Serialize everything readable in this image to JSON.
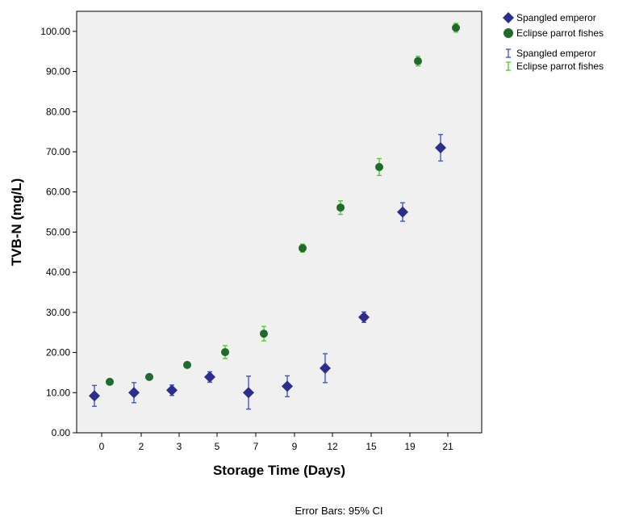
{
  "chart_data": {
    "type": "scatter",
    "xlabel": "Storage Time (Days)",
    "ylabel": "TVB-N (mg/L)",
    "categories": [
      "0",
      "2",
      "3",
      "5",
      "7",
      "9",
      "12",
      "15",
      "19",
      "21"
    ],
    "y_ticks": [
      "0.00",
      "10.00",
      "20.00",
      "30.00",
      "40.00",
      "50.00",
      "60.00",
      "70.00",
      "80.00",
      "90.00",
      "100.00"
    ],
    "ylim": [
      0,
      105
    ],
    "grid": false,
    "legend_position": "right",
    "error_bars": "95% CI",
    "footnote": "Error Bars: 95% CI",
    "series": [
      {
        "name": "Spangled emperor",
        "marker": "diamond",
        "color": "#2b2f8c",
        "error_color": "#4455cc",
        "values": [
          9.2,
          10.0,
          10.6,
          13.9,
          10.0,
          11.6,
          16.1,
          28.8,
          55.0,
          71.0
        ],
        "ci_low": [
          6.6,
          7.5,
          9.3,
          12.6,
          5.9,
          9.0,
          12.5,
          27.5,
          52.7,
          67.7
        ],
        "ci_high": [
          11.8,
          12.5,
          11.9,
          15.2,
          14.1,
          14.2,
          19.7,
          30.1,
          57.3,
          74.3
        ]
      },
      {
        "name": "Eclipse parrot fishes",
        "marker": "circle",
        "color": "#1f6b2e",
        "error_color": "#55cc33",
        "values": [
          12.7,
          13.9,
          16.9,
          20.1,
          24.7,
          46.0,
          56.1,
          66.2,
          92.6,
          100.9
        ],
        "ci_low": [
          12.2,
          13.4,
          16.2,
          18.5,
          22.9,
          45.0,
          54.4,
          64.1,
          91.4,
          99.8
        ],
        "ci_high": [
          13.2,
          14.4,
          17.6,
          21.7,
          26.5,
          47.0,
          57.8,
          68.3,
          93.8,
          102.0
        ]
      }
    ],
    "legend": {
      "marker_entries": [
        "Spangled emperor",
        "Eclipse parrot fishes"
      ],
      "errorbar_entries": [
        "Spangled emperor",
        "Eclipse parrot fishes"
      ]
    }
  }
}
